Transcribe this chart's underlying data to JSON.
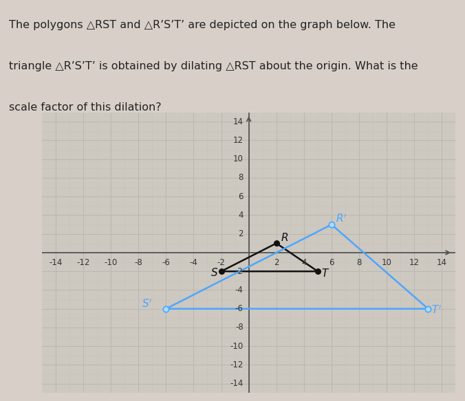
{
  "xlim": [
    -15,
    15
  ],
  "ylim": [
    -15,
    15
  ],
  "major_ticks": [
    -14,
    -12,
    -10,
    -8,
    -6,
    -4,
    -2,
    2,
    4,
    6,
    8,
    10,
    12,
    14
  ],
  "minor_ticks": [
    -14,
    -13,
    -12,
    -11,
    -10,
    -9,
    -8,
    -7,
    -6,
    -5,
    -4,
    -3,
    -2,
    -1,
    0,
    1,
    2,
    3,
    4,
    5,
    6,
    7,
    8,
    9,
    10,
    11,
    12,
    13,
    14
  ],
  "RST": {
    "R": [
      2,
      1
    ],
    "S": [
      -2,
      -2
    ],
    "T": [
      5,
      -2
    ],
    "color": "#111111",
    "dot_color": "#111111",
    "linewidth": 1.8
  },
  "RSTP": {
    "R": [
      6,
      3
    ],
    "S": [
      -6,
      -6
    ],
    "T": [
      13,
      -6
    ],
    "color": "#4da6ff",
    "dot_color": "#4da6ff",
    "linewidth": 1.8
  },
  "background_color": "#d8d0c8",
  "plot_bg_color": "#cdc8c0",
  "grid_color": "#bcb8b0",
  "grid_minor_color": "#c8c4bc",
  "axis_color": "#555555",
  "label_color": "#333333",
  "label_fontsize": 8.5,
  "title_fontsize": 11.5,
  "title_lines": [
    "The polygons △RST and △R’S’T’ are depicted on the graph below. The",
    "triangle △R’S’T’ is obtained by dilating △RST about the origin. What is the",
    "scale factor of this dilation?"
  ],
  "title_italic_parts": {
    "RST_plain": "RST",
    "RSTP_plain": "R’S’T’"
  }
}
